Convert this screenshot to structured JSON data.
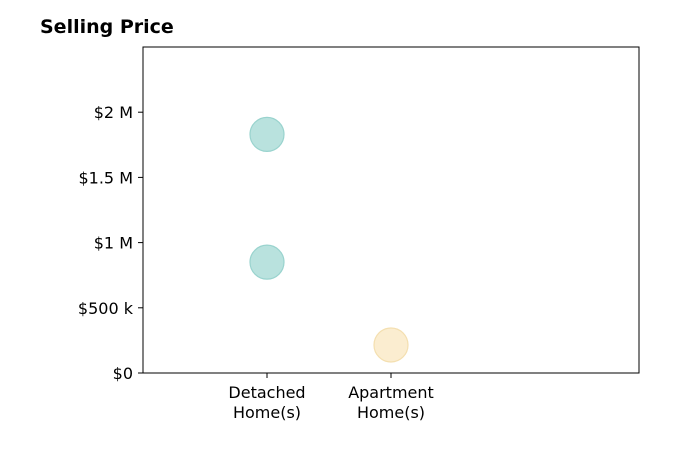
{
  "chart_data": {
    "type": "scatter",
    "title": "Selling Price",
    "categories": [
      "Detached\nHome(s)",
      "Apartment\nHome(s)"
    ],
    "y_ticks": [
      {
        "value": 0,
        "label": "$0"
      },
      {
        "value": 500000,
        "label": "$500 k"
      },
      {
        "value": 1000000,
        "label": "$1 M"
      },
      {
        "value": 1500000,
        "label": "$1.5 M"
      },
      {
        "value": 2000000,
        "label": "$2 M"
      }
    ],
    "ylim": [
      0,
      2500000
    ],
    "x_slots": [
      0,
      1,
      2,
      3
    ],
    "points": [
      {
        "category": "Detached\nHome(s)",
        "value": 1830000,
        "color": "#b2dfdb"
      },
      {
        "category": "Detached\nHome(s)",
        "value": 850000,
        "color": "#b2dfdb"
      },
      {
        "category": "Apartment\nHome(s)",
        "value": 215000,
        "color": "#fbeccb"
      }
    ],
    "grid": false,
    "legend": "none"
  }
}
